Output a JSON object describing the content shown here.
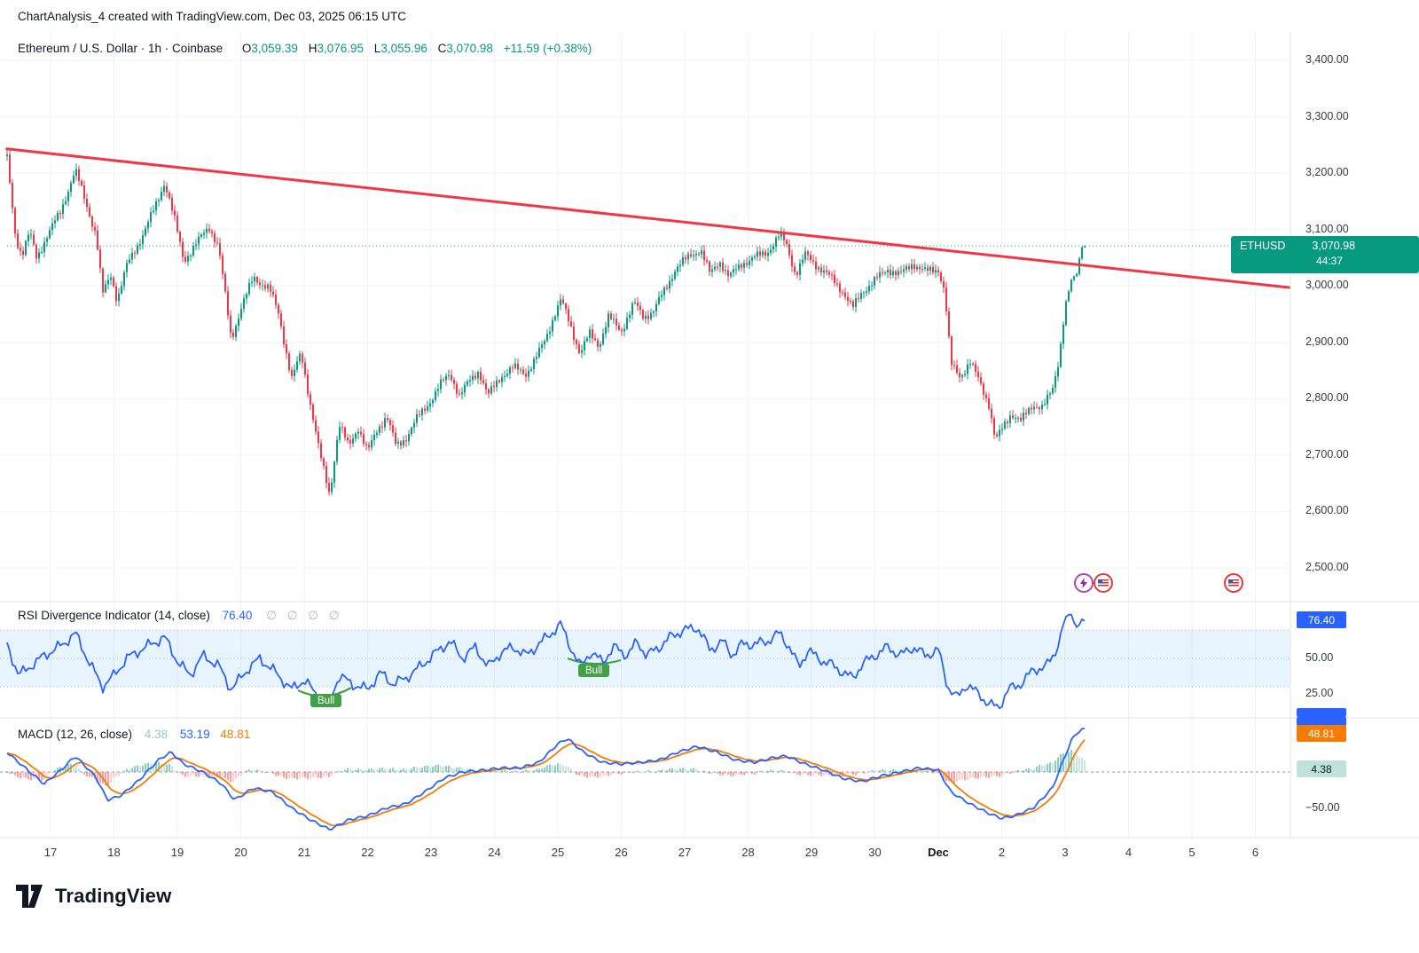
{
  "header": {
    "title": "ChartAnalysis_4 created with TradingView.com, Dec 03, 2025 06:15 UTC"
  },
  "main_chart": {
    "legend": {
      "symbol_title": "Ethereum / U.S. Dollar · 1h · Coinbase",
      "o_label": "O",
      "o": "3,059.39",
      "h_label": "H",
      "h": "3,076.95",
      "l_label": "L",
      "l": "3,055.96",
      "c_label": "C",
      "c": "3,070.98",
      "change": "+11.59 (+0.38%)"
    },
    "price_badge": {
      "symbol": "ETHUSD",
      "price": "3,070.98",
      "countdown": "44:37"
    }
  },
  "rsi_panel": {
    "title": "RSI Divergence Indicator (14, close)",
    "value": "76.40",
    "null_symbols": "∅ ∅ ∅ ∅",
    "value_badge": "76.40",
    "axis_mid": "50.00",
    "axis_low": "25.00",
    "bull_label": "Bull"
  },
  "macd_panel": {
    "title": "MACD (12, 26, close)",
    "hist_value": "4.38",
    "macd_value": "53.19",
    "signal_value": "48.81",
    "badge_signal": "48.81",
    "badge_hist": "4.38",
    "axis_low": "−50.00"
  },
  "footer": {
    "brand": "TradingView"
  },
  "colors": {
    "up": "#089981",
    "down": "#F23645",
    "rsi": "#2962FF",
    "macd": "#2962FF",
    "signal": "#F57C00",
    "trend": "#F23645",
    "badge_green": "#089981",
    "badge_blue": "#2962FF",
    "badge_orange": "#F57C00",
    "grid": "#F0F3FA"
  },
  "chart_data": {
    "type": "candlestick",
    "symbol": "ETHUSD",
    "exchange": "Coinbase",
    "timeframe": "1h",
    "title": "Ethereum / U.S. Dollar",
    "ohlc_current": {
      "open": 3059.39,
      "high": 3076.95,
      "low": 3055.96,
      "close": 3070.98,
      "change": 11.59,
      "change_pct": 0.38
    },
    "current_price": 3070.98,
    "y_axis": {
      "values": [
        3400,
        3300,
        3200,
        3100,
        3000,
        2900,
        2800,
        2700,
        2600,
        2500
      ],
      "labels": [
        "3,400.00",
        "3,300.00",
        "3,200.00",
        "3,100.00",
        "3,000.00",
        "2,900.00",
        "2,800.00",
        "2,700.00",
        "2,600.00",
        "2,500.00"
      ],
      "min": 2500,
      "max": 3400
    },
    "x_axis": {
      "labels": [
        "17",
        "18",
        "19",
        "20",
        "21",
        "22",
        "23",
        "24",
        "25",
        "26",
        "27",
        "28",
        "29",
        "30",
        "Dec",
        "2",
        "3",
        "4",
        "5",
        "6"
      ]
    },
    "trendline": {
      "points": [
        [
          -0.69,
          3243
        ],
        [
          19.55,
          2997
        ]
      ],
      "color": "#F23645"
    },
    "price_path": [
      [
        -0.69,
        3230
      ],
      [
        -0.55,
        3085
      ],
      [
        -0.45,
        3055
      ],
      [
        -0.33,
        3095
      ],
      [
        -0.22,
        3050
      ],
      [
        -0.05,
        3090
      ],
      [
        0.15,
        3130
      ],
      [
        0.39,
        3205
      ],
      [
        0.55,
        3150
      ],
      [
        0.72,
        3090
      ],
      [
        0.82,
        2985
      ],
      [
        0.95,
        3020
      ],
      [
        1.05,
        2975
      ],
      [
        1.2,
        3035
      ],
      [
        1.45,
        3090
      ],
      [
        1.65,
        3140
      ],
      [
        1.8,
        3185
      ],
      [
        1.95,
        3120
      ],
      [
        2.1,
        3045
      ],
      [
        2.3,
        3075
      ],
      [
        2.5,
        3105
      ],
      [
        2.65,
        3070
      ],
      [
        2.85,
        2905
      ],
      [
        3.0,
        2960
      ],
      [
        3.2,
        3015
      ],
      [
        3.45,
        2995
      ],
      [
        3.6,
        2950
      ],
      [
        3.8,
        2835
      ],
      [
        3.95,
        2880
      ],
      [
        4.1,
        2790
      ],
      [
        4.25,
        2700
      ],
      [
        4.4,
        2630
      ],
      [
        4.55,
        2755
      ],
      [
        4.7,
        2715
      ],
      [
        4.85,
        2750
      ],
      [
        5.0,
        2705
      ],
      [
        5.15,
        2745
      ],
      [
        5.3,
        2770
      ],
      [
        5.45,
        2715
      ],
      [
        5.6,
        2730
      ],
      [
        5.75,
        2760
      ],
      [
        5.95,
        2790
      ],
      [
        6.15,
        2825
      ],
      [
        6.3,
        2845
      ],
      [
        6.45,
        2805
      ],
      [
        6.6,
        2830
      ],
      [
        6.75,
        2850
      ],
      [
        6.9,
        2805
      ],
      [
        7.1,
        2840
      ],
      [
        7.3,
        2855
      ],
      [
        7.5,
        2845
      ],
      [
        7.65,
        2870
      ],
      [
        7.8,
        2905
      ],
      [
        7.95,
        2950
      ],
      [
        8.05,
        2975
      ],
      [
        8.2,
        2930
      ],
      [
        8.35,
        2880
      ],
      [
        8.5,
        2915
      ],
      [
        8.65,
        2895
      ],
      [
        8.8,
        2945
      ],
      [
        9.0,
        2920
      ],
      [
        9.2,
        2970
      ],
      [
        9.35,
        2945
      ],
      [
        9.5,
        2955
      ],
      [
        9.7,
        2995
      ],
      [
        9.85,
        3030
      ],
      [
        10.1,
        3055
      ],
      [
        10.25,
        3065
      ],
      [
        10.4,
        3020
      ],
      [
        10.55,
        3045
      ],
      [
        10.7,
        3015
      ],
      [
        10.9,
        3040
      ],
      [
        11.1,
        3050
      ],
      [
        11.3,
        3060
      ],
      [
        11.5,
        3090
      ],
      [
        11.6,
        3075
      ],
      [
        11.75,
        3020
      ],
      [
        11.9,
        3055
      ],
      [
        12.1,
        3035
      ],
      [
        12.3,
        3015
      ],
      [
        12.5,
        2990
      ],
      [
        12.65,
        2960
      ],
      [
        12.8,
        2990
      ],
      [
        13.0,
        3010
      ],
      [
        13.2,
        3030
      ],
      [
        13.4,
        3020
      ],
      [
        13.6,
        3040
      ],
      [
        13.8,
        3025
      ],
      [
        14.0,
        3030
      ],
      [
        14.1,
        2990
      ],
      [
        14.2,
        2860
      ],
      [
        14.35,
        2840
      ],
      [
        14.5,
        2865
      ],
      [
        14.65,
        2830
      ],
      [
        14.8,
        2790
      ],
      [
        14.9,
        2725
      ],
      [
        15.0,
        2745
      ],
      [
        15.15,
        2775
      ],
      [
        15.3,
        2760
      ],
      [
        15.5,
        2790
      ],
      [
        15.65,
        2785
      ],
      [
        15.8,
        2815
      ],
      [
        15.9,
        2870
      ],
      [
        16.0,
        2965
      ],
      [
        16.1,
        3010
      ],
      [
        16.18,
        3020
      ],
      [
        16.26,
        3071
      ]
    ],
    "rsi": {
      "value": 76.4,
      "overbought": 70,
      "midline": 50,
      "oversold": 30,
      "bull_marker_days": [
        4.35,
        8.6
      ],
      "path": [
        [
          -0.69,
          60
        ],
        [
          -0.5,
          38
        ],
        [
          -0.3,
          45
        ],
        [
          -0.1,
          52
        ],
        [
          0.2,
          60
        ],
        [
          0.39,
          68
        ],
        [
          0.6,
          48
        ],
        [
          0.82,
          30
        ],
        [
          1.0,
          38
        ],
        [
          1.2,
          50
        ],
        [
          1.5,
          58
        ],
        [
          1.8,
          65
        ],
        [
          2.0,
          48
        ],
        [
          2.2,
          38
        ],
        [
          2.4,
          52
        ],
        [
          2.65,
          45
        ],
        [
          2.85,
          28
        ],
        [
          3.1,
          42
        ],
        [
          3.3,
          50
        ],
        [
          3.55,
          40
        ],
        [
          3.8,
          28
        ],
        [
          4.0,
          35
        ],
        [
          4.2,
          24
        ],
        [
          4.4,
          20
        ],
        [
          4.55,
          38
        ],
        [
          4.75,
          32
        ],
        [
          5.0,
          28
        ],
        [
          5.2,
          40
        ],
        [
          5.4,
          32
        ],
        [
          5.6,
          36
        ],
        [
          5.85,
          45
        ],
        [
          6.1,
          55
        ],
        [
          6.3,
          62
        ],
        [
          6.5,
          50
        ],
        [
          6.7,
          58
        ],
        [
          6.9,
          44
        ],
        [
          7.1,
          54
        ],
        [
          7.3,
          58
        ],
        [
          7.5,
          52
        ],
        [
          7.7,
          60
        ],
        [
          7.95,
          70
        ],
        [
          8.05,
          74
        ],
        [
          8.2,
          58
        ],
        [
          8.35,
          44
        ],
        [
          8.5,
          54
        ],
        [
          8.7,
          48
        ],
        [
          8.9,
          58
        ],
        [
          9.1,
          52
        ],
        [
          9.25,
          62
        ],
        [
          9.4,
          52
        ],
        [
          9.6,
          58
        ],
        [
          9.8,
          66
        ],
        [
          10.0,
          70
        ],
        [
          10.2,
          72
        ],
        [
          10.4,
          56
        ],
        [
          10.6,
          62
        ],
        [
          10.75,
          52
        ],
        [
          10.9,
          60
        ],
        [
          11.1,
          60
        ],
        [
          11.3,
          62
        ],
        [
          11.5,
          68
        ],
        [
          11.65,
          58
        ],
        [
          11.8,
          44
        ],
        [
          11.95,
          56
        ],
        [
          12.1,
          50
        ],
        [
          12.3,
          46
        ],
        [
          12.5,
          40
        ],
        [
          12.65,
          36
        ],
        [
          12.8,
          46
        ],
        [
          13.0,
          52
        ],
        [
          13.2,
          58
        ],
        [
          13.4,
          52
        ],
        [
          13.6,
          58
        ],
        [
          13.8,
          52
        ],
        [
          14.0,
          56
        ],
        [
          14.15,
          30
        ],
        [
          14.3,
          22
        ],
        [
          14.45,
          32
        ],
        [
          14.6,
          26
        ],
        [
          14.8,
          18
        ],
        [
          14.95,
          15
        ],
        [
          15.1,
          28
        ],
        [
          15.3,
          32
        ],
        [
          15.5,
          42
        ],
        [
          15.7,
          44
        ],
        [
          15.85,
          55
        ],
        [
          16.0,
          78
        ],
        [
          16.1,
          82
        ],
        [
          16.15,
          74
        ],
        [
          16.2,
          72
        ],
        [
          16.26,
          76.4
        ]
      ]
    },
    "macd": {
      "macd": 53.19,
      "signal": 48.81,
      "histogram": 4.38,
      "path": [
        [
          -0.69,
          25
        ],
        [
          -0.4,
          5
        ],
        [
          -0.1,
          -15
        ],
        [
          0.2,
          5
        ],
        [
          0.39,
          20
        ],
        [
          0.7,
          -5
        ],
        [
          0.9,
          -35
        ],
        [
          1.1,
          -30
        ],
        [
          1.4,
          -10
        ],
        [
          1.7,
          15
        ],
        [
          1.9,
          25
        ],
        [
          2.1,
          10
        ],
        [
          2.4,
          0
        ],
        [
          2.7,
          -15
        ],
        [
          2.9,
          -35
        ],
        [
          3.2,
          -20
        ],
        [
          3.5,
          -25
        ],
        [
          3.8,
          -45
        ],
        [
          4.1,
          -60
        ],
        [
          4.4,
          -72
        ],
        [
          4.7,
          -60
        ],
        [
          5.0,
          -55
        ],
        [
          5.3,
          -45
        ],
        [
          5.6,
          -40
        ],
        [
          5.9,
          -25
        ],
        [
          6.2,
          -8
        ],
        [
          6.5,
          0
        ],
        [
          6.8,
          2
        ],
        [
          7.1,
          5
        ],
        [
          7.4,
          5
        ],
        [
          7.7,
          12
        ],
        [
          8.0,
          35
        ],
        [
          8.15,
          42
        ],
        [
          8.4,
          25
        ],
        [
          8.7,
          12
        ],
        [
          9.0,
          10
        ],
        [
          9.3,
          12
        ],
        [
          9.6,
          15
        ],
        [
          9.9,
          25
        ],
        [
          10.2,
          32
        ],
        [
          10.5,
          25
        ],
        [
          10.8,
          15
        ],
        [
          11.1,
          12
        ],
        [
          11.4,
          18
        ],
        [
          11.6,
          20
        ],
        [
          11.9,
          10
        ],
        [
          12.2,
          2
        ],
        [
          12.5,
          -8
        ],
        [
          12.8,
          -12
        ],
        [
          13.1,
          -5
        ],
        [
          13.4,
          0
        ],
        [
          13.7,
          5
        ],
        [
          14.0,
          2
        ],
        [
          14.2,
          -25
        ],
        [
          14.5,
          -40
        ],
        [
          14.8,
          -52
        ],
        [
          15.0,
          -58
        ],
        [
          15.2,
          -55
        ],
        [
          15.5,
          -45
        ],
        [
          15.8,
          -20
        ],
        [
          16.0,
          20
        ],
        [
          16.1,
          40
        ],
        [
          16.2,
          50
        ],
        [
          16.26,
          53.19
        ]
      ]
    }
  }
}
